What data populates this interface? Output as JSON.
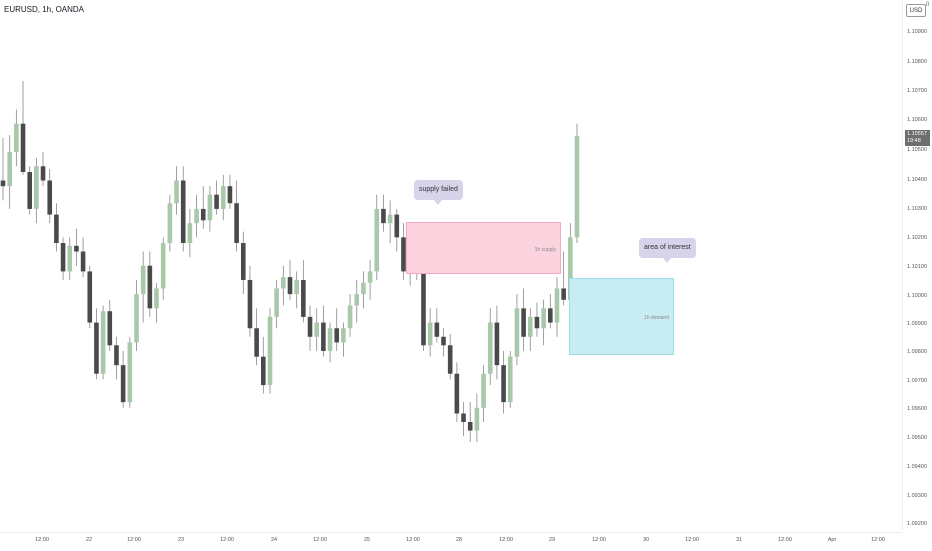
{
  "header": {
    "symbol_title": "EURUSD, 1h, OANDA",
    "currency": "USD",
    "currency_mark": "0"
  },
  "price_axis": {
    "ticks": [
      "1.10900",
      "1.10800",
      "1.10700",
      "1.10600",
      "1.10500",
      "1.10400",
      "1.10300",
      "1.10200",
      "1.10100",
      "1.10000",
      "1.09900",
      "1.09800",
      "1.09700",
      "1.09600",
      "1.09500",
      "1.09400",
      "1.09300",
      "1.09200"
    ],
    "last_price": "1.10557",
    "countdown": "19:48"
  },
  "time_axis": {
    "ticks": [
      "12:00",
      "22",
      "12:00",
      "23",
      "12:00",
      "24",
      "12:00",
      "25",
      "12:00",
      "28",
      "12:00",
      "29",
      "12:00",
      "30",
      "12:00",
      "31",
      "12:00",
      "Apr",
      "12:00"
    ]
  },
  "annotations": {
    "supply_callout": "supply failed",
    "interest_callout": "area of interest",
    "supply_zone_label": "1h supply",
    "demand_zone_label": "1h demand"
  },
  "colors": {
    "bullish_body": "#a9c7a9",
    "bearish_body": "#4a4a4a",
    "wick": "#888888",
    "supply_fill": "#fbd3df",
    "demand_fill": "#c8ecf3",
    "callout_fill": "#d7d3ea",
    "last_price_bg": "#6e6e6e"
  },
  "chart_data": {
    "type": "candlestick",
    "series": [
      {
        "name": "EURUSD",
        "values": [
          [
            1.104,
            1.1055,
            1.1033,
            1.1038
          ],
          [
            1.1038,
            1.1056,
            1.103,
            1.105
          ],
          [
            1.105,
            1.1065,
            1.1045,
            1.106
          ],
          [
            1.106,
            1.1075,
            1.1042,
            1.1043
          ],
          [
            1.1043,
            1.1045,
            1.1028,
            1.103
          ],
          [
            1.103,
            1.1048,
            1.1025,
            1.1045
          ],
          [
            1.1045,
            1.105,
            1.1038,
            1.104
          ],
          [
            1.104,
            1.1044,
            1.1025,
            1.1028
          ],
          [
            1.1028,
            1.1032,
            1.1015,
            1.1018
          ],
          [
            1.1018,
            1.102,
            1.1005,
            1.1008
          ],
          [
            1.1008,
            1.102,
            1.1005,
            1.1017
          ],
          [
            1.1017,
            1.1023,
            1.101,
            1.1015
          ],
          [
            1.1015,
            1.102,
            1.1006,
            1.1008
          ],
          [
            1.1008,
            1.101,
            1.0988,
            1.099
          ],
          [
            1.099,
            1.0995,
            1.097,
            1.0972
          ],
          [
            1.0972,
            1.0996,
            1.097,
            1.0994
          ],
          [
            1.0994,
            1.0998,
            1.098,
            1.0982
          ],
          [
            1.0982,
            1.0985,
            1.097,
            1.0975
          ],
          [
            1.0975,
            1.098,
            1.096,
            1.0962
          ],
          [
            1.0962,
            1.0985,
            1.096,
            1.0983
          ],
          [
            1.0983,
            1.1005,
            1.098,
            1.1
          ],
          [
            1.1,
            1.1015,
            1.099,
            1.101
          ],
          [
            1.101,
            1.1015,
            1.0992,
            1.0995
          ],
          [
            1.0995,
            1.1004,
            1.099,
            1.1002
          ],
          [
            1.1002,
            1.102,
            1.0998,
            1.1018
          ],
          [
            1.1018,
            1.1035,
            1.1015,
            1.1032
          ],
          [
            1.1032,
            1.1045,
            1.1028,
            1.104
          ],
          [
            1.104,
            1.1045,
            1.1015,
            1.1018
          ],
          [
            1.1018,
            1.103,
            1.1013,
            1.1025
          ],
          [
            1.1025,
            1.1035,
            1.102,
            1.103
          ],
          [
            1.103,
            1.1038,
            1.1023,
            1.1026
          ],
          [
            1.1026,
            1.1038,
            1.1022,
            1.1035
          ],
          [
            1.1035,
            1.104,
            1.1028,
            1.103
          ],
          [
            1.103,
            1.1042,
            1.1026,
            1.1038
          ],
          [
            1.1038,
            1.1042,
            1.103,
            1.1032
          ],
          [
            1.1032,
            1.104,
            1.1015,
            1.1018
          ],
          [
            1.1018,
            1.1022,
            1.1,
            1.1005
          ],
          [
            1.1005,
            1.101,
            1.0985,
            1.0988
          ],
          [
            1.0988,
            1.0995,
            1.0975,
            1.0978
          ],
          [
            1.0978,
            1.0985,
            1.0965,
            1.0968
          ],
          [
            1.0968,
            1.0995,
            1.0965,
            1.0992
          ],
          [
            1.0992,
            1.1005,
            1.0988,
            1.1002
          ],
          [
            1.1002,
            1.101,
            1.0996,
            1.1006
          ],
          [
            1.1006,
            1.1012,
            1.0998,
            1.1
          ],
          [
            1.1,
            1.1008,
            1.0995,
            1.1005
          ],
          [
            1.1005,
            1.1012,
            1.099,
            1.0992
          ],
          [
            1.0992,
            1.0996,
            1.098,
            1.0985
          ],
          [
            1.0985,
            1.0995,
            1.098,
            1.099
          ],
          [
            1.099,
            1.0996,
            1.0978,
            1.098
          ],
          [
            1.098,
            1.099,
            1.0976,
            1.0988
          ],
          [
            1.0988,
            1.0995,
            1.098,
            1.0983
          ],
          [
            1.0983,
            1.099,
            1.0978,
            1.0988
          ],
          [
            1.0988,
            1.1,
            1.0985,
            1.0996
          ],
          [
            1.0996,
            1.1005,
            1.099,
            1.1
          ],
          [
            1.1,
            1.1008,
            1.0995,
            1.1004
          ],
          [
            1.1004,
            1.1012,
            1.0998,
            1.1008
          ],
          [
            1.1008,
            1.1035,
            1.1005,
            1.103
          ],
          [
            1.103,
            1.1035,
            1.1022,
            1.1025
          ],
          [
            1.1025,
            1.1033,
            1.1018,
            1.1028
          ],
          [
            1.1028,
            1.103,
            1.1015,
            1.102
          ],
          [
            1.102,
            1.1025,
            1.1005,
            1.1008
          ],
          [
            1.1008,
            1.102,
            1.1003,
            1.1015
          ],
          [
            1.1015,
            1.1025,
            1.1005,
            1.1008
          ],
          [
            1.1008,
            1.1012,
            1.098,
            1.0982
          ],
          [
            1.0982,
            1.0995,
            1.0978,
            1.099
          ],
          [
            1.099,
            1.0995,
            1.0983,
            1.0985
          ],
          [
            1.0985,
            1.0988,
            1.0978,
            1.0982
          ],
          [
            1.0982,
            1.0986,
            1.097,
            1.0972
          ],
          [
            1.0972,
            1.0976,
            1.0955,
            1.0958
          ],
          [
            1.0958,
            1.0962,
            1.095,
            1.0955
          ],
          [
            1.0955,
            1.0962,
            1.0948,
            1.0952
          ],
          [
            1.0952,
            1.0965,
            1.0948,
            1.096
          ],
          [
            1.096,
            1.0975,
            1.0955,
            1.0972
          ],
          [
            1.0972,
            1.0995,
            1.0968,
            1.099
          ],
          [
            1.099,
            1.0996,
            1.097,
            1.0975
          ],
          [
            1.0975,
            1.098,
            1.0958,
            1.0962
          ],
          [
            1.0962,
            1.098,
            1.096,
            1.0978
          ],
          [
            1.0978,
            1.1,
            1.0975,
            1.0995
          ],
          [
            1.0995,
            1.1002,
            1.098,
            1.0985
          ],
          [
            1.0985,
            1.0995,
            1.098,
            1.0992
          ],
          [
            1.0992,
            1.0997,
            1.0985,
            1.0988
          ],
          [
            1.0988,
            1.0998,
            1.0982,
            1.0995
          ],
          [
            1.0995,
            1.1,
            1.0988,
            1.099
          ],
          [
            1.099,
            1.1006,
            1.0985,
            1.1002
          ],
          [
            1.1002,
            1.1015,
            1.0996,
            1.0998
          ],
          [
            1.0998,
            1.1025,
            1.0995,
            1.102
          ],
          [
            1.102,
            1.106,
            1.1018,
            1.10557
          ]
        ]
      }
    ],
    "zones": [
      {
        "name": "1h supply",
        "y_top": 1.1025,
        "y_bottom": 1.1007
      },
      {
        "name": "1h demand",
        "y_top": 1.1006,
        "y_bottom": 1.098
      }
    ],
    "yticks": [
      1.109,
      1.108,
      1.107,
      1.106,
      1.105,
      1.104,
      1.103,
      1.102,
      1.101,
      1.1,
      1.099,
      1.098,
      1.097,
      1.096,
      1.095,
      1.094,
      1.093,
      1.092
    ],
    "ylim": [
      1.0917,
      1.11
    ],
    "grid": false
  }
}
